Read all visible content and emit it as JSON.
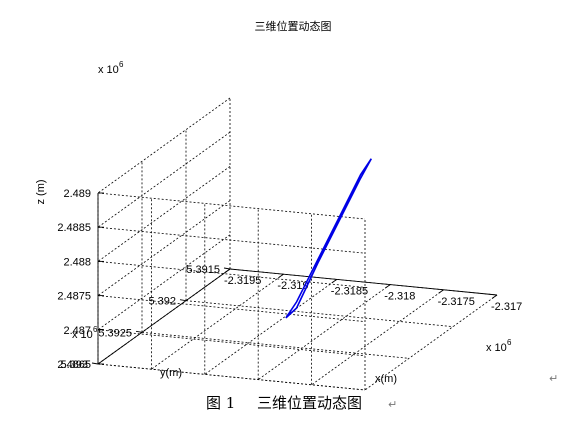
{
  "chart_data": {
    "type": "line",
    "title": "三维位置动态图",
    "xlabel": "x(m)",
    "ylabel": "y(m)",
    "zlabel": "z (m)",
    "xlim": [
      -2.3195,
      -2.317
    ],
    "ylim": [
      5.3915,
      5.393
    ],
    "zlim": [
      2.4865,
      2.489
    ],
    "x_ticks": [
      "-2.3195",
      "-2.319",
      "-2.3185",
      "-2.318",
      "-2.3175",
      "-2.317"
    ],
    "y_ticks": [
      "5.3915",
      "5.392",
      "5.3925",
      "5.393"
    ],
    "z_ticks": [
      "2.4865",
      "2.487",
      "2.4875",
      "2.488",
      "2.4885",
      "2.489"
    ],
    "x_multiplier": "x 10",
    "x_exponent": "6",
    "y_multiplier": "x 10",
    "y_exponent": "6",
    "z_multiplier": "x 10",
    "z_exponent": "6",
    "grid": true,
    "series": [
      {
        "color": "#0000e6",
        "points": [
          [
            -2.3183,
            5.3922,
            2.48676
          ],
          [
            -2.3181,
            5.3922,
            2.48745
          ],
          [
            -2.3179,
            5.3922,
            2.4881
          ],
          [
            -2.3177,
            5.3922,
            2.48875
          ],
          [
            -2.3176,
            5.3922,
            2.48905
          ],
          [
            -2.3177,
            5.3922,
            2.4888
          ],
          [
            -2.3179,
            5.3922,
            2.48815
          ],
          [
            -2.3181,
            5.3922,
            2.4875
          ],
          [
            -2.3183,
            5.3922,
            2.48685
          ],
          [
            -2.3184,
            5.3922,
            2.4866
          ],
          [
            -2.3183,
            5.3922,
            2.48676
          ]
        ]
      }
    ]
  },
  "caption": {
    "label": "图 1",
    "text": "三维位置动态图",
    "mark": "↵"
  },
  "paragraph_marks": {
    "right": "↵"
  }
}
